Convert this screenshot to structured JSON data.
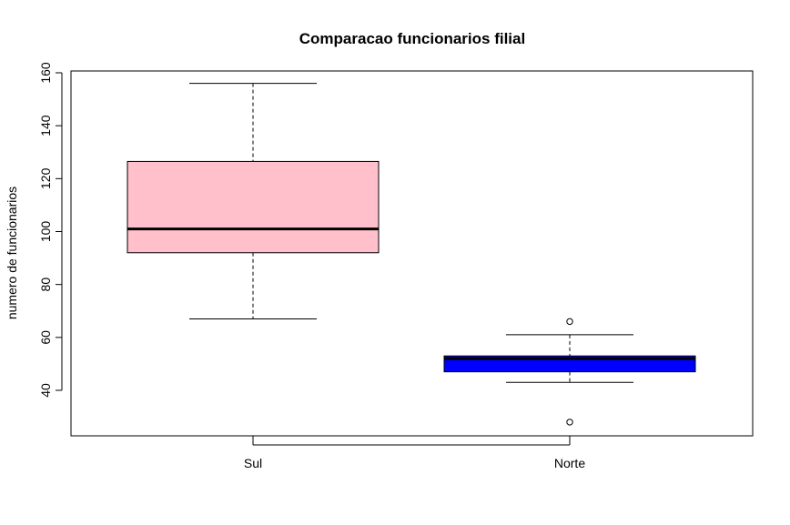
{
  "chart_data": {
    "type": "boxplot",
    "title": "Comparacao funcionarios filial",
    "xlabel": "",
    "ylabel": "numero de funcionarios",
    "ylim": [
      22,
      160
    ],
    "yticks": [
      40,
      60,
      80,
      100,
      120,
      140,
      160
    ],
    "categories": [
      "Sul",
      "Norte"
    ],
    "boxes": [
      {
        "category": "Sul",
        "whisker_low": 67,
        "q1": 92,
        "median": 101,
        "q3": 126.5,
        "whisker_high": 156,
        "outliers": [],
        "color": "#ffc0cb"
      },
      {
        "category": "Norte",
        "whisker_low": 43,
        "q1": 47,
        "median": 52,
        "q3": 53,
        "whisker_high": 61,
        "outliers": [
          66,
          28
        ],
        "color": "#0000ff"
      }
    ],
    "grid": false,
    "legend": "none"
  }
}
